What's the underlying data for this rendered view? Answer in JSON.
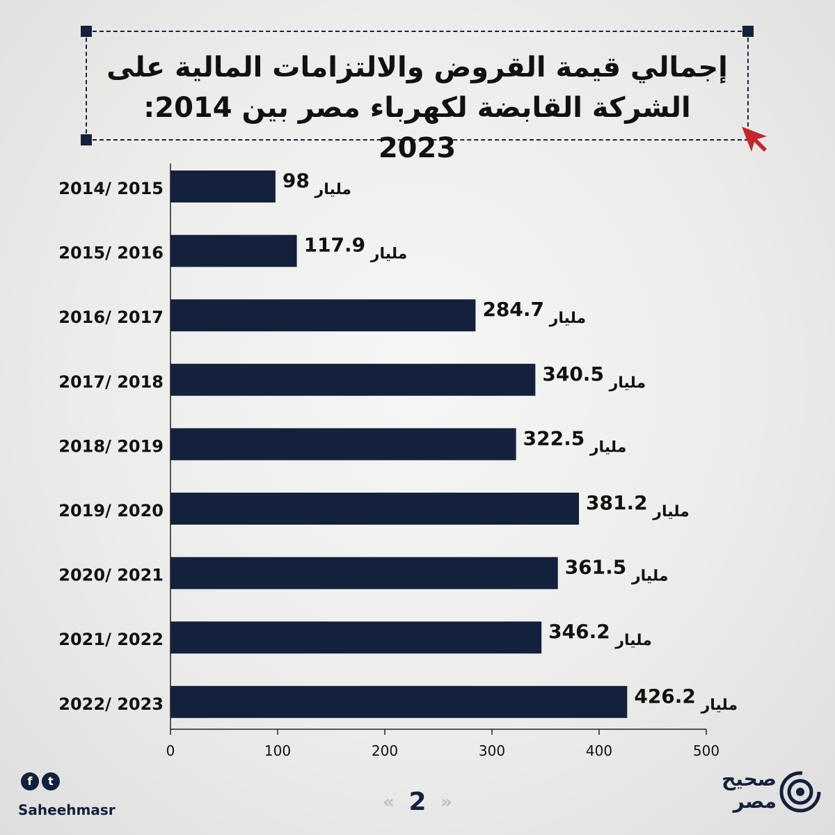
{
  "title": "إجمالي قيمة القروض والالتزامات المالية على الشركة القابضة لكهرباء مصر بين 2014: 2023",
  "chart_data": {
    "type": "bar",
    "orientation": "horizontal",
    "categories": [
      "2014/ 2015",
      "2015/ 2016",
      "2016/ 2017",
      "2017/ 2018",
      "2018/ 2019",
      "2019/ 2020",
      "2020/ 2021",
      "2021/ 2022",
      "2022/ 2023"
    ],
    "values": [
      98,
      117.9,
      284.7,
      340.5,
      322.5,
      381.2,
      361.5,
      346.2,
      426.2
    ],
    "value_labels": [
      "98",
      "117.9",
      "284.7",
      "340.5",
      "322.5",
      "381.2",
      "361.5",
      "346.2",
      "426.2"
    ],
    "unit_label": "مليار",
    "xlim": [
      0,
      500
    ],
    "x_ticks": [
      0,
      100,
      200,
      300,
      400,
      500
    ],
    "grid": false,
    "bar_color": "#14213d"
  },
  "colors": {
    "accent": "#14213d",
    "cursor": "#c1272d"
  },
  "footer": {
    "social_icons": [
      "facebook-icon",
      "twitter-icon"
    ],
    "facebook_glyph": "f",
    "twitter_glyph": "t",
    "handle": "Saheehmasr",
    "page_number": "2",
    "prev_glyph": "«",
    "next_glyph": "»",
    "brand_line1": "صحيح",
    "brand_line2": "مصر"
  }
}
